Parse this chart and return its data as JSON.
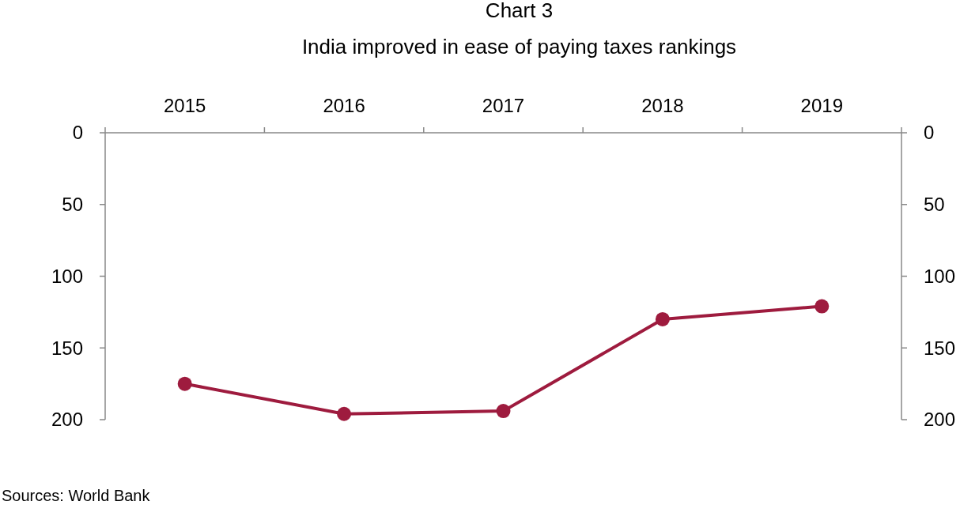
{
  "chart_data": {
    "type": "line",
    "title": "Chart 3",
    "subtitle": "India improved in ease of paying taxes rankings",
    "categories": [
      "2015",
      "2016",
      "2017",
      "2018",
      "2019"
    ],
    "series": [
      {
        "color": "#9e1b3e",
        "values": [
          175,
          196,
          194,
          130,
          121
        ]
      }
    ],
    "ylim": [
      200,
      0
    ],
    "yticks": [
      0,
      50,
      100,
      150,
      200
    ],
    "y2lim": [
      200,
      0
    ],
    "y2ticks": [
      0,
      50,
      100,
      150,
      200
    ],
    "marker": "circle",
    "line_style": "solid",
    "annotations": [
      "Sources:  World Bank"
    ]
  }
}
